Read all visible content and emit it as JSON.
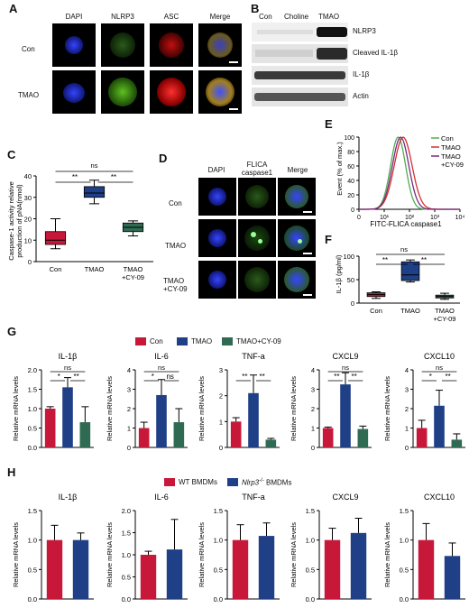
{
  "panels": {
    "A": {
      "letter": "A",
      "cols": [
        "DAPI",
        "NLRP3",
        "ASC",
        "Merge"
      ],
      "rows": [
        "Con",
        "TMAO"
      ]
    },
    "B": {
      "letter": "B",
      "cols": [
        "Con",
        "Choline",
        "TMAO"
      ],
      "bands": [
        "NLRP3",
        "Cleaved IL-1β",
        "IL-1β",
        "Actin"
      ]
    },
    "C": {
      "letter": "C",
      "ylabel_line1": "Caspase-1 activity relative",
      "ylabel_line2": "production of pNA(nmol)",
      "sig": [
        "**",
        "**"
      ]
    },
    "D": {
      "letter": "D",
      "cols": [
        "DAPI",
        "FLICA caspase1",
        "Merge"
      ],
      "col2_line1": "FLICA",
      "col2_line2": "caspase1",
      "rows": [
        "Con",
        "TMAO",
        "TMAO +CY-09"
      ],
      "row3_line1": "TMAO",
      "row3_line2": "+CY-09"
    },
    "E": {
      "letter": "E",
      "ylabel": "Event (% of max.)",
      "xlabel": "FITC-FLICA caspase1",
      "legend": [
        "Con",
        "TMAO",
        "TMAO +CY-09"
      ],
      "legend3_line1": "TMAO",
      "legend3_line2": "+CY-09"
    },
    "F": {
      "letter": "F",
      "ylabel": "IL-1β (pg/ml)",
      "sig_ns": "ns",
      "sig": [
        "**",
        "**"
      ]
    },
    "G": {
      "letter": "G",
      "legend": [
        "Con",
        "TMAO",
        "TMAO+CY-09"
      ],
      "ylabel": "Relative mRNA levels"
    },
    "H": {
      "letter": "H",
      "legend_wt": "WT BMDMs",
      "legend_ko_main": "Nlrp3",
      "legend_ko_sup": "-/-",
      "legend_ko_rest": " BMDMs",
      "ylabel": "Relative mRNA levels"
    }
  },
  "colors": {
    "con": "#c8183a",
    "tmao": "#1f3f86",
    "cy09": "#2f6b52",
    "histo_con": "#4fae4f",
    "histo_tmao": "#d43030",
    "histo_cy": "#7a2a82"
  },
  "chart_data": [
    {
      "id": "C",
      "type": "box",
      "categories": [
        "Con",
        "TMAO",
        "TMAO +CY-09"
      ],
      "ylim": [
        0,
        40
      ],
      "yticks": [
        0,
        10,
        20,
        30,
        40
      ],
      "boxes": [
        {
          "min": 6,
          "q1": 8,
          "median": 10,
          "q3": 14,
          "max": 20
        },
        {
          "min": 27,
          "q1": 30,
          "median": 32,
          "q3": 35,
          "max": 38
        },
        {
          "min": 12,
          "q1": 14,
          "median": 16,
          "q3": 18,
          "max": 19
        }
      ],
      "annot": [
        "**",
        "ns",
        "**"
      ]
    },
    {
      "id": "E",
      "type": "histogram",
      "series": [
        "Con",
        "TMAO",
        "TMAO +CY-09"
      ],
      "yticks": [
        0,
        20,
        40,
        60,
        80,
        100
      ],
      "xticks": [
        "0",
        "10¹",
        "10²",
        "10³",
        "10⁴"
      ],
      "peaks": [
        1.55,
        1.75,
        1.65
      ]
    },
    {
      "id": "F",
      "type": "box",
      "categories": [
        "Con",
        "TMAO",
        "TMAO +CY-09"
      ],
      "ylim": [
        0,
        100
      ],
      "yticks": [
        0,
        50,
        100
      ],
      "boxes": [
        {
          "min": 10,
          "q1": 14,
          "median": 18,
          "q3": 22,
          "max": 24
        },
        {
          "min": 45,
          "q1": 48,
          "median": 60,
          "q3": 88,
          "max": 92
        },
        {
          "min": 8,
          "q1": 11,
          "median": 14,
          "q3": 17,
          "max": 21
        }
      ]
    },
    {
      "id": "G",
      "type": "bar",
      "categories": [
        "Con",
        "TMAO",
        "TMAO+CY-09"
      ],
      "panels": [
        {
          "title": "IL-1β",
          "ymax": 2.0,
          "yticks": [
            0,
            0.5,
            1.0,
            1.5,
            2.0
          ],
          "values": [
            1.0,
            1.55,
            0.65
          ],
          "err": [
            0.05,
            0.25,
            0.4
          ],
          "sig": [
            "*",
            "**",
            "ns"
          ]
        },
        {
          "title": "IL-6",
          "ymax": 4,
          "yticks": [
            0,
            1,
            2,
            3,
            4
          ],
          "values": [
            1.0,
            2.7,
            1.3
          ],
          "err": [
            0.3,
            0.8,
            0.7
          ],
          "sig": [
            "*",
            "ns",
            "ns"
          ]
        },
        {
          "title": "TNF-a",
          "ymax": 3,
          "yticks": [
            0,
            1,
            2,
            3
          ],
          "values": [
            1.0,
            2.1,
            0.3
          ],
          "err": [
            0.15,
            0.7,
            0.05
          ],
          "sig": [
            "**",
            "**",
            null
          ]
        },
        {
          "title": "CXCL9",
          "ymax": 4,
          "yticks": [
            0,
            1,
            2,
            3,
            4
          ],
          "values": [
            1.0,
            3.25,
            0.95
          ],
          "err": [
            0.05,
            0.6,
            0.15
          ],
          "sig": [
            "**",
            "**",
            "ns"
          ]
        },
        {
          "title": "CXCL10",
          "ymax": 4,
          "yticks": [
            0,
            1,
            2,
            3,
            4
          ],
          "values": [
            1.0,
            2.15,
            0.4
          ],
          "err": [
            0.4,
            0.8,
            0.3
          ],
          "sig": [
            "*",
            "**",
            "ns"
          ]
        }
      ]
    },
    {
      "id": "H",
      "type": "bar",
      "categories": [
        "WT BMDMs",
        "Nlrp3-/- BMDMs"
      ],
      "panels": [
        {
          "title": "IL-1β",
          "ymax": 1.5,
          "yticks": [
            0,
            0.5,
            1.0,
            1.5
          ],
          "values": [
            1.0,
            1.0
          ],
          "err": [
            0.25,
            0.12
          ]
        },
        {
          "title": "IL-6",
          "ymax": 2.0,
          "yticks": [
            0,
            0.5,
            1.0,
            1.5,
            2.0
          ],
          "values": [
            1.0,
            1.12
          ],
          "err": [
            0.08,
            0.68
          ]
        },
        {
          "title": "TNF-a",
          "ymax": 1.5,
          "yticks": [
            0,
            0.5,
            1.0,
            1.5
          ],
          "values": [
            1.0,
            1.07
          ],
          "err": [
            0.26,
            0.22
          ]
        },
        {
          "title": "CXCL9",
          "ymax": 1.5,
          "yticks": [
            0,
            0.5,
            1.0,
            1.5
          ],
          "values": [
            1.0,
            1.12
          ],
          "err": [
            0.2,
            0.25
          ]
        },
        {
          "title": "CXCL10",
          "ymax": 1.5,
          "yticks": [
            0,
            0.5,
            1.0,
            1.5
          ],
          "values": [
            1.0,
            0.73
          ],
          "err": [
            0.28,
            0.22
          ]
        }
      ]
    }
  ]
}
